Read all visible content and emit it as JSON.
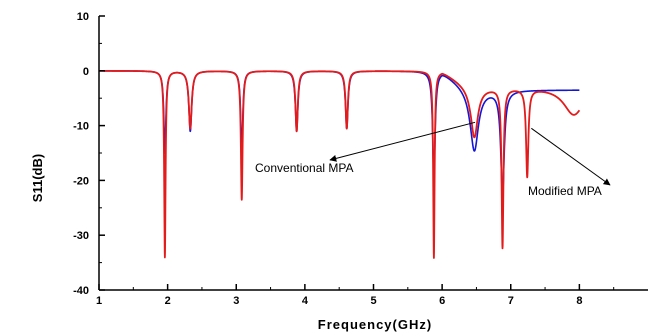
{
  "chart_data": {
    "type": "line",
    "title": "",
    "xlabel": "Frequency(GHz)",
    "ylabel": "S11(dB)",
    "xlim": [
      1,
      9
    ],
    "ylim": [
      -40,
      10
    ],
    "x_ticks": [
      1,
      2,
      3,
      4,
      5,
      6,
      7,
      8
    ],
    "y_ticks": [
      10,
      0,
      -10,
      -20,
      -30,
      -40
    ],
    "grid": false,
    "series": [
      {
        "color": "#1515d6",
        "resonances": [
          {
            "f": 1.96,
            "depth": -15,
            "width": 0.018
          },
          {
            "f": 2.33,
            "depth": -11,
            "width": 0.025
          },
          {
            "f": 3.08,
            "depth": -15,
            "width": 0.018
          },
          {
            "f": 3.88,
            "depth": -11,
            "width": 0.022
          },
          {
            "f": 4.61,
            "depth": -10.5,
            "width": 0.022
          },
          {
            "f": 5.88,
            "depth": -19,
            "width": 0.022
          },
          {
            "f": 6.47,
            "depth": -11,
            "width": 0.07
          },
          {
            "f": 6.88,
            "depth": -19,
            "width": 0.03
          }
        ],
        "end_level": -3.5
      },
      {
        "color": "#e31b1b",
        "resonances": [
          {
            "f": 1.96,
            "depth": -34,
            "width": 0.012
          },
          {
            "f": 2.33,
            "depth": -10.5,
            "width": 0.025
          },
          {
            "f": 3.08,
            "depth": -23.5,
            "width": 0.015
          },
          {
            "f": 3.88,
            "depth": -11,
            "width": 0.02
          },
          {
            "f": 4.61,
            "depth": -10.5,
            "width": 0.02
          },
          {
            "f": 5.88,
            "depth": -34,
            "width": 0.012
          },
          {
            "f": 6.47,
            "depth": -9,
            "width": 0.06
          },
          {
            "f": 6.88,
            "depth": -29,
            "width": 0.016
          },
          {
            "f": 7.24,
            "depth": -16,
            "width": 0.02
          },
          {
            "f": 7.92,
            "depth": -5,
            "width": 0.18
          }
        ],
        "end_level": -3
      }
    ],
    "annotations": [
      {
        "text": "Conventional MPA",
        "arrow_to": [
          6.48,
          -9.4
        ]
      },
      {
        "text": "Modified MPA",
        "arrow_to": [
          7.3,
          -10.5
        ]
      }
    ]
  }
}
